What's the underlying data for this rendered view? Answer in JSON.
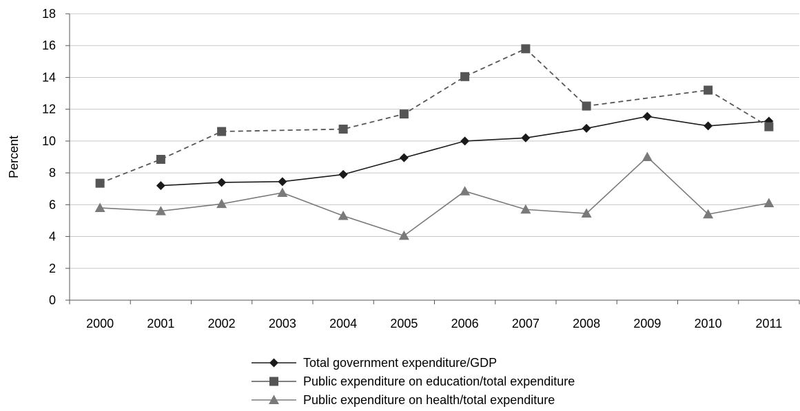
{
  "chart_data": {
    "type": "line",
    "title": "",
    "xlabel": "",
    "ylabel": "Percent",
    "ylim": [
      0,
      18
    ],
    "yticks": [
      0,
      2,
      4,
      6,
      8,
      10,
      12,
      14,
      16,
      18
    ],
    "categories": [
      "2000",
      "2001",
      "2002",
      "2003",
      "2004",
      "2005",
      "2006",
      "2007",
      "2008",
      "2009",
      "2010",
      "2011"
    ],
    "grid": "horizontal",
    "legend_position": "bottom",
    "series": [
      {
        "name": "Total government expenditure/GDP",
        "marker": "diamond",
        "line_style": "solid",
        "color": "#1a1a1a",
        "values": [
          null,
          7.2,
          7.4,
          7.45,
          7.9,
          8.95,
          10.0,
          10.2,
          10.8,
          11.55,
          10.95,
          11.25
        ]
      },
      {
        "name": "Public expenditure on education/total expenditure",
        "marker": "square",
        "line_style": "dashed",
        "color": "#555555",
        "values": [
          7.35,
          8.85,
          10.6,
          null,
          10.75,
          11.7,
          14.05,
          15.8,
          12.2,
          null,
          13.2,
          10.9
        ]
      },
      {
        "name": "Public expenditure on health/total expenditure",
        "marker": "triangle",
        "line_style": "solid",
        "color": "#7a7a7a",
        "values": [
          5.8,
          5.6,
          6.05,
          6.75,
          5.3,
          4.05,
          6.85,
          5.7,
          5.45,
          9.0,
          5.4,
          6.1
        ]
      }
    ]
  }
}
